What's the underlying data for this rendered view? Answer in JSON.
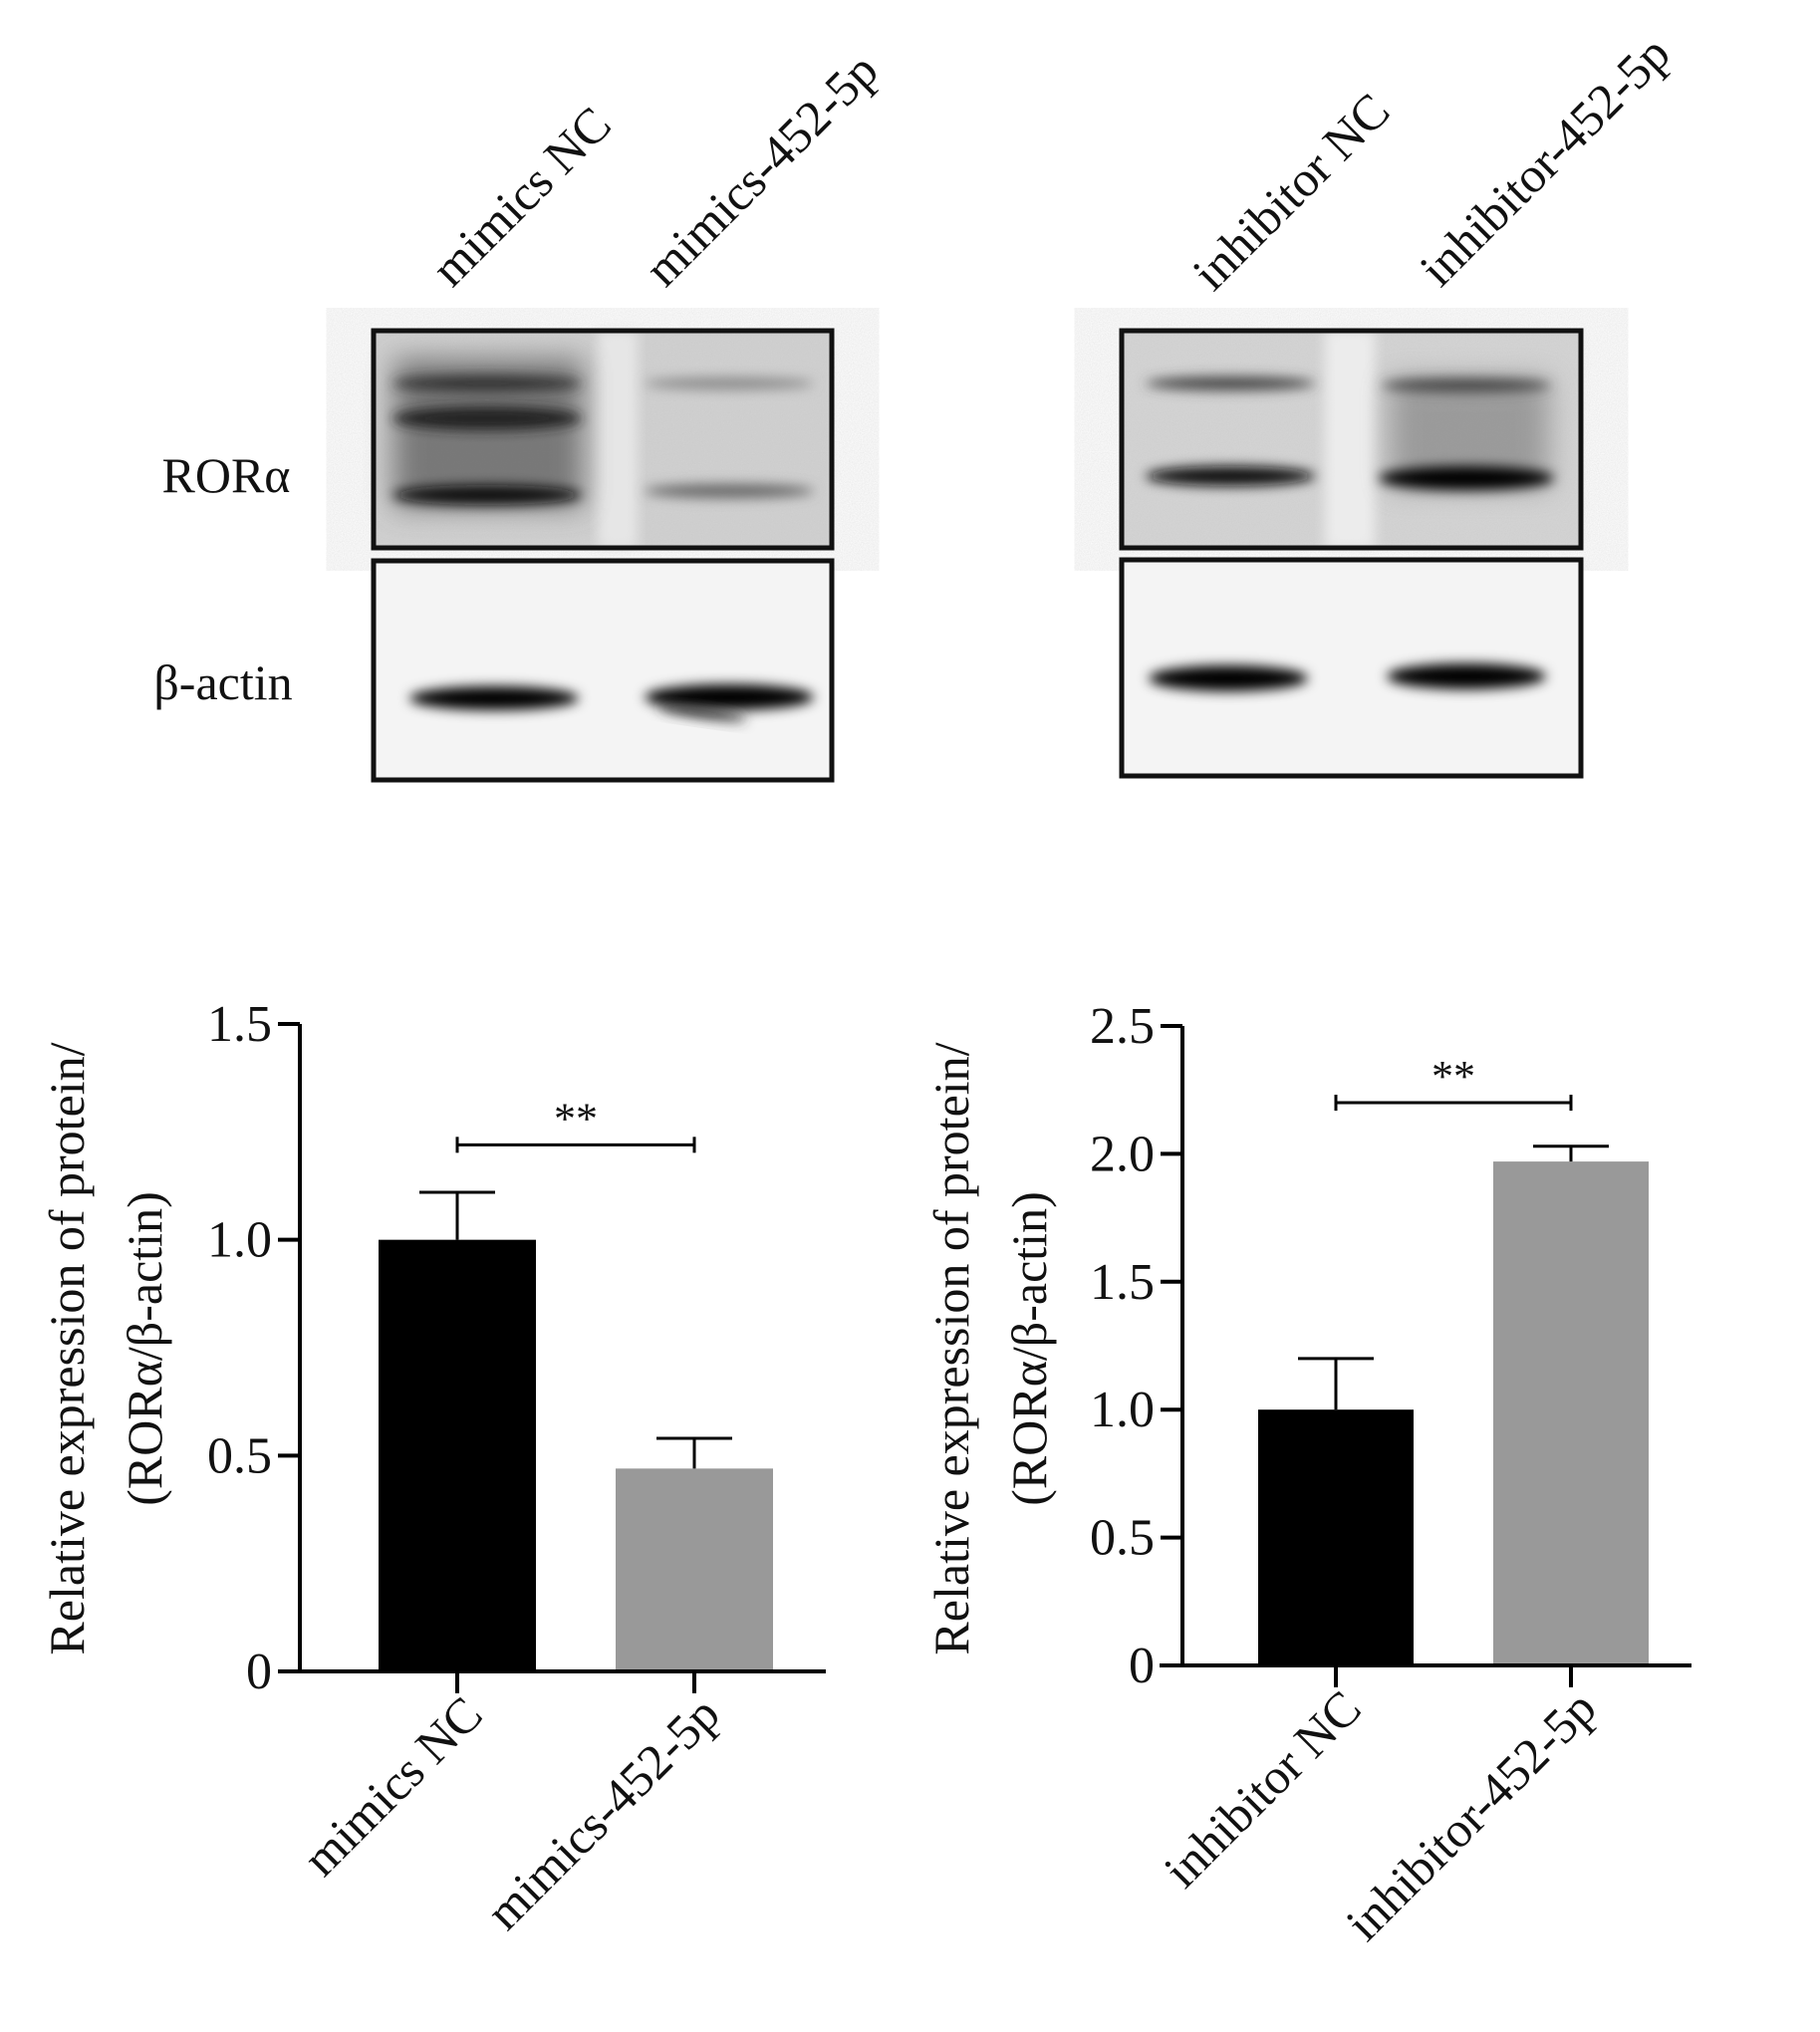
{
  "blots": {
    "left_lanes": [
      "mimics NC",
      "mimics-452-5p"
    ],
    "right_lanes": [
      "inhibitor NC",
      "inhibitor-452-5p"
    ],
    "row_labels": [
      "RORα",
      "β-actin"
    ]
  },
  "chart_data": [
    {
      "type": "bar",
      "categories": [
        "mimics NC",
        "mimics-452-5p"
      ],
      "values": [
        1.0,
        0.47
      ],
      "errors": [
        0.11,
        0.07
      ],
      "colors": [
        "#000000",
        "#999999"
      ],
      "ylabel": [
        "Relative expression of protein/",
        "(RORα/β-actin)"
      ],
      "ylim": [
        0,
        1.5
      ],
      "yticks": [
        "0",
        "0.5",
        "1.0",
        "1.5"
      ],
      "ytick_values": [
        0,
        0.5,
        1.0,
        1.5
      ],
      "significance": {
        "label": "**",
        "between": [
          0,
          1
        ],
        "level": 1.22
      },
      "grid": false
    },
    {
      "type": "bar",
      "categories": [
        "inhibitor NC",
        "inhibitor-452-5p"
      ],
      "values": [
        1.0,
        1.97
      ],
      "errors": [
        0.2,
        0.06
      ],
      "colors": [
        "#000000",
        "#999999"
      ],
      "ylabel": [
        "Relative expression of protein/",
        "(RORα/β-actin)"
      ],
      "ylim": [
        0,
        2.5
      ],
      "yticks": [
        "0",
        "0.5",
        "1.0",
        "1.5",
        "2.0",
        "2.5"
      ],
      "ytick_values": [
        0,
        0.5,
        1.0,
        1.5,
        2.0,
        2.5
      ],
      "significance": {
        "label": "**",
        "between": [
          0,
          1
        ],
        "level": 2.2
      },
      "grid": false
    }
  ]
}
